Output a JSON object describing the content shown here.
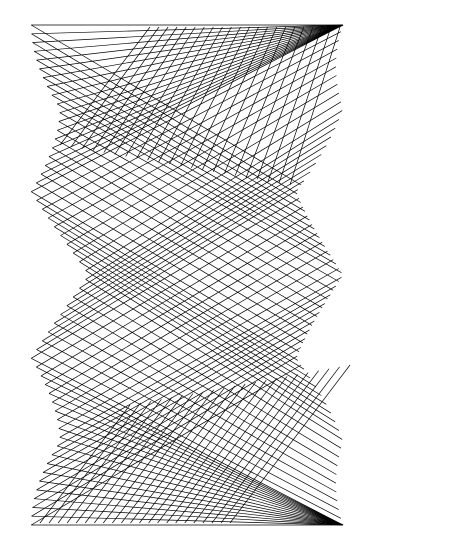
{
  "artwork": {
    "subject": "string-art",
    "background_color": "#ffffff",
    "stroke_color": "#000000",
    "families": [
      {
        "direction": "right-leaning",
        "count": 58
      },
      {
        "direction": "left-leaning",
        "count": 58
      }
    ]
  }
}
